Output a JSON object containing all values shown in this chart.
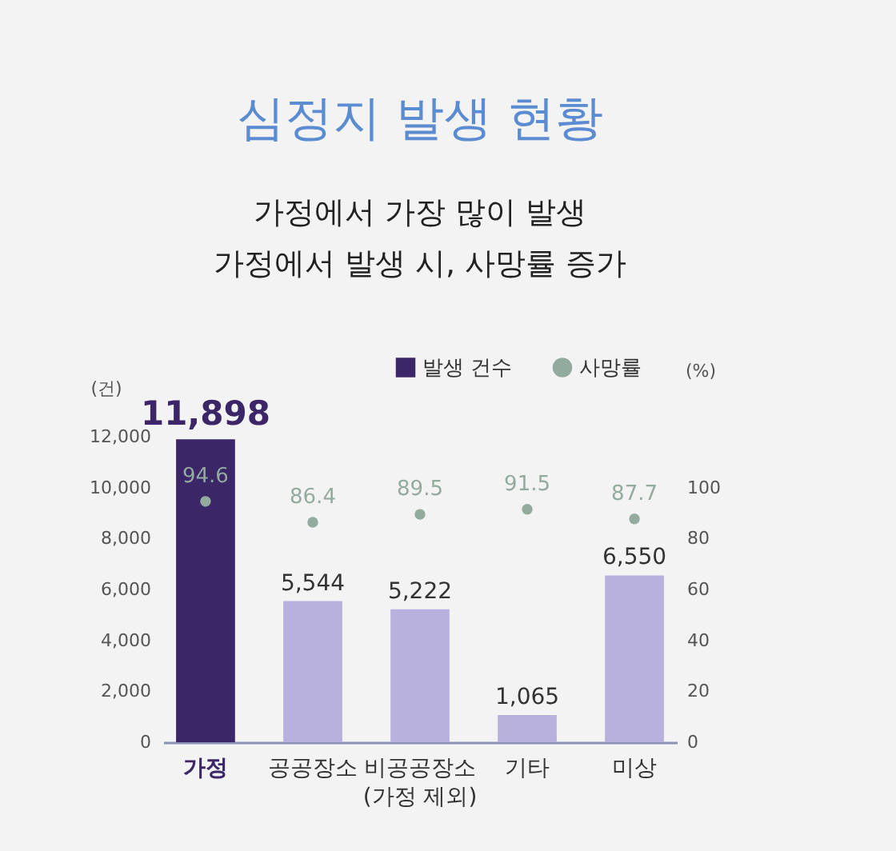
{
  "chart_data": {
    "type": "bar",
    "title": "심정지 발생 현황",
    "subtitle": "가정에서 가장 많이 발생\n가정에서 발생 시, 사망률 증가",
    "ylabel": "(건)",
    "y2label": "(%)",
    "categories": [
      "가정",
      "공공장소",
      "비공공장소\n(가정 제외)",
      "기타",
      "미상"
    ],
    "series": [
      {
        "name": "발생 건수",
        "color": "#3b2668",
        "colors": [
          "#3b2668",
          "#b8b0dd",
          "#b8b0dd",
          "#b8b0dd",
          "#b8b0dd"
        ],
        "values": [
          11898,
          5544,
          5222,
          1065,
          6550
        ],
        "value_labels": [
          "11,898",
          "5,544",
          "5,222",
          "1,065",
          "6,550"
        ]
      },
      {
        "name": "사망률",
        "type": "scatter",
        "axis": "y2",
        "color": "#93ab9e",
        "values": [
          94.6,
          86.4,
          89.5,
          91.5,
          87.7
        ],
        "value_labels": [
          "94.6",
          "86.4",
          "89.5",
          "91.5",
          "87.7"
        ]
      }
    ],
    "ylim": [
      0,
      12000
    ],
    "yticks": [
      0,
      {
        "value": 2000,
        "label": "2,000"
      },
      {
        "value": 4000,
        "label": "4,000"
      },
      {
        "value": 6000,
        "label": "6,000"
      },
      {
        "value": 8000,
        "label": "8,000"
      },
      {
        "value": 10000,
        "label": "10,000"
      },
      {
        "value": 12000,
        "label": "12,000"
      }
    ],
    "y2lim": [
      0,
      120
    ],
    "y2ticks": [
      0,
      20,
      40,
      60,
      80,
      100
    ],
    "marker": "circle",
    "legend": "top right",
    "grid": false
  }
}
